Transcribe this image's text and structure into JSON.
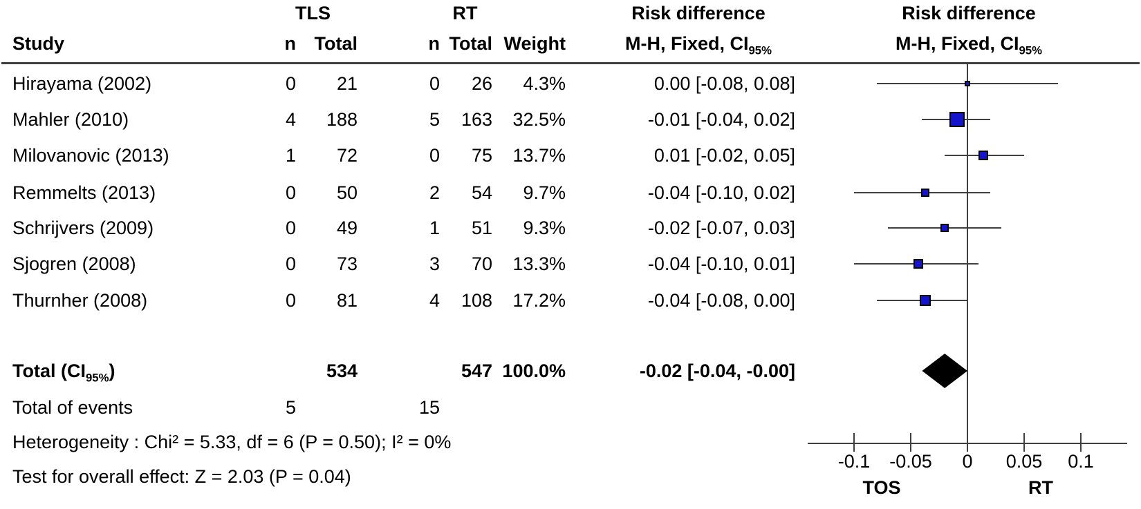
{
  "table": {
    "col_study": "Study",
    "group1_label": "TLS",
    "group2_label": "RT",
    "col_n": "n",
    "col_total": "Total",
    "col_weight": "Weight",
    "risk_diff_label": "Risk difference",
    "mh_label": "M-H, Fixed, CI",
    "mh_sub": "95%"
  },
  "chart_data": {
    "type": "forest",
    "effect_measure": "Risk difference, M-H, Fixed, 95% CI",
    "comparison": {
      "group1": "TLS",
      "group2": "RT"
    },
    "studies": [
      {
        "name": "Hirayama (2002)",
        "n1": "0",
        "total1": "21",
        "n2": "0",
        "total2": "26",
        "weight": "4.3%",
        "weight_value": 4.3,
        "estimate": 0.0,
        "ci_low": -0.08,
        "ci_high": 0.08,
        "ci_text": "0.00 [-0.08, 0.08]"
      },
      {
        "name": "Mahler (2010)",
        "n1": "4",
        "total1": "188",
        "n2": "5",
        "total2": "163",
        "weight": "32.5%",
        "weight_value": 32.5,
        "estimate": -0.009,
        "ci_low": -0.04,
        "ci_high": 0.02,
        "ci_text": "-0.01 [-0.04, 0.02]"
      },
      {
        "name": "Milovanovic (2013)",
        "n1": "1",
        "total1": "72",
        "n2": "0",
        "total2": "75",
        "weight": "13.7%",
        "weight_value": 13.7,
        "estimate": 0.014,
        "ci_low": -0.02,
        "ci_high": 0.05,
        "ci_text": "0.01 [-0.02, 0.05]"
      },
      {
        "name": "Remmelts (2013)",
        "n1": "0",
        "total1": "50",
        "n2": "2",
        "total2": "54",
        "weight": "9.7%",
        "weight_value": 9.7,
        "estimate": -0.037,
        "ci_low": -0.1,
        "ci_high": 0.02,
        "ci_text": "-0.04 [-0.10, 0.02]"
      },
      {
        "name": "Schrijvers (2009)",
        "n1": "0",
        "total1": "49",
        "n2": "1",
        "total2": "51",
        "weight": "9.3%",
        "weight_value": 9.3,
        "estimate": -0.02,
        "ci_low": -0.07,
        "ci_high": 0.03,
        "ci_text": "-0.02 [-0.07, 0.03]"
      },
      {
        "name": "Sjogren (2008)",
        "n1": "0",
        "total1": "73",
        "n2": "3",
        "total2": "70",
        "weight": "13.3%",
        "weight_value": 13.3,
        "estimate": -0.043,
        "ci_low": -0.1,
        "ci_high": 0.01,
        "ci_text": "-0.04 [-0.10, 0.01]"
      },
      {
        "name": "Thurnher (2008)",
        "n1": "0",
        "total1": "81",
        "n2": "4",
        "total2": "108",
        "weight": "17.2%",
        "weight_value": 17.2,
        "estimate": -0.037,
        "ci_low": -0.08,
        "ci_high": 0.0,
        "ci_text": "-0.04 [-0.08,  0.00]"
      }
    ],
    "totals": {
      "label_main": "Total (CI",
      "label_sub": "95%",
      "label_end": ")",
      "total1": "534",
      "total2": "547",
      "weight": "100.0%",
      "estimate": -0.02,
      "ci_low": -0.04,
      "ci_high": 0.0,
      "ci_text": "-0.02 [-0.04, -0.00]"
    },
    "events": {
      "label": "Total of events",
      "group1": "5",
      "group2": "15"
    },
    "heterogeneity": "Heterogeneity : Chi² = 5.33, df = 6 (P = 0.50); I² = 0%",
    "overall_effect": "Test for overall effect: Z = 2.03 (P = 0.04)",
    "axis": {
      "ticks": [
        -0.1,
        -0.05,
        0,
        0.05,
        0.1
      ],
      "tick_labels": [
        "-0.1",
        "-0.05",
        "0",
        "0.05",
        "0.1"
      ],
      "favours_left": "TOS",
      "favours_right": "RT",
      "xlim": [
        -0.141,
        0.141
      ]
    },
    "colors": {
      "marker_fill": "#1414cc",
      "marker_border": "#000000",
      "line": "#3f3f3f",
      "diamond": "#000000"
    }
  }
}
